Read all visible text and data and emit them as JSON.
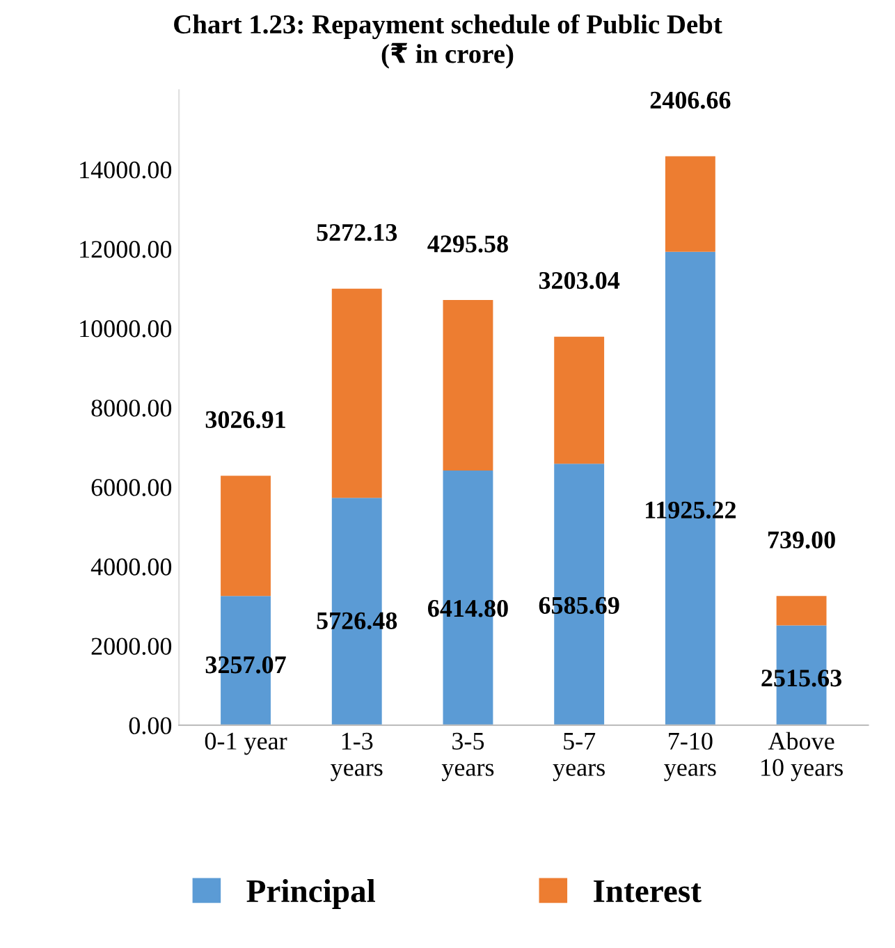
{
  "chart_data": {
    "type": "bar",
    "stacked": true,
    "title": "Chart 1.23: Repayment schedule of Public Debt\n(₹ in crore)",
    "categories": [
      "0-1 year",
      "1-3\nyears",
      "3-5\nyears",
      "5-7\nyears",
      "7-10\nyears",
      "Above\n10 years"
    ],
    "series": [
      {
        "name": "Principal",
        "color": "#5b9bd5",
        "values": [
          3257.07,
          5726.48,
          6414.8,
          6585.69,
          11925.22,
          2515.63
        ],
        "value_labels": [
          "3257.07",
          "5726.48",
          "6414.80",
          "6585.69",
          "11925.22",
          "2515.63"
        ]
      },
      {
        "name": "Interest",
        "color": "#ed7d31",
        "values": [
          3026.91,
          5272.13,
          4295.58,
          3203.04,
          2406.66,
          739.0
        ],
        "value_labels": [
          "3026.91",
          "5272.13",
          "4295.58",
          "3203.04",
          "2406.66",
          "739.00"
        ]
      }
    ],
    "ylim": [
      0,
      16000
    ],
    "yticks": [
      {
        "value": 0,
        "label": "0.00"
      },
      {
        "value": 2000,
        "label": "2000.00"
      },
      {
        "value": 4000,
        "label": "4000.00"
      },
      {
        "value": 6000,
        "label": "6000.00"
      },
      {
        "value": 8000,
        "label": "8000.00"
      },
      {
        "value": 10000,
        "label": "10000.00"
      },
      {
        "value": 12000,
        "label": "12000.00"
      },
      {
        "value": 14000,
        "label": "14000.00"
      }
    ],
    "grid": false,
    "legend": "bottom"
  }
}
